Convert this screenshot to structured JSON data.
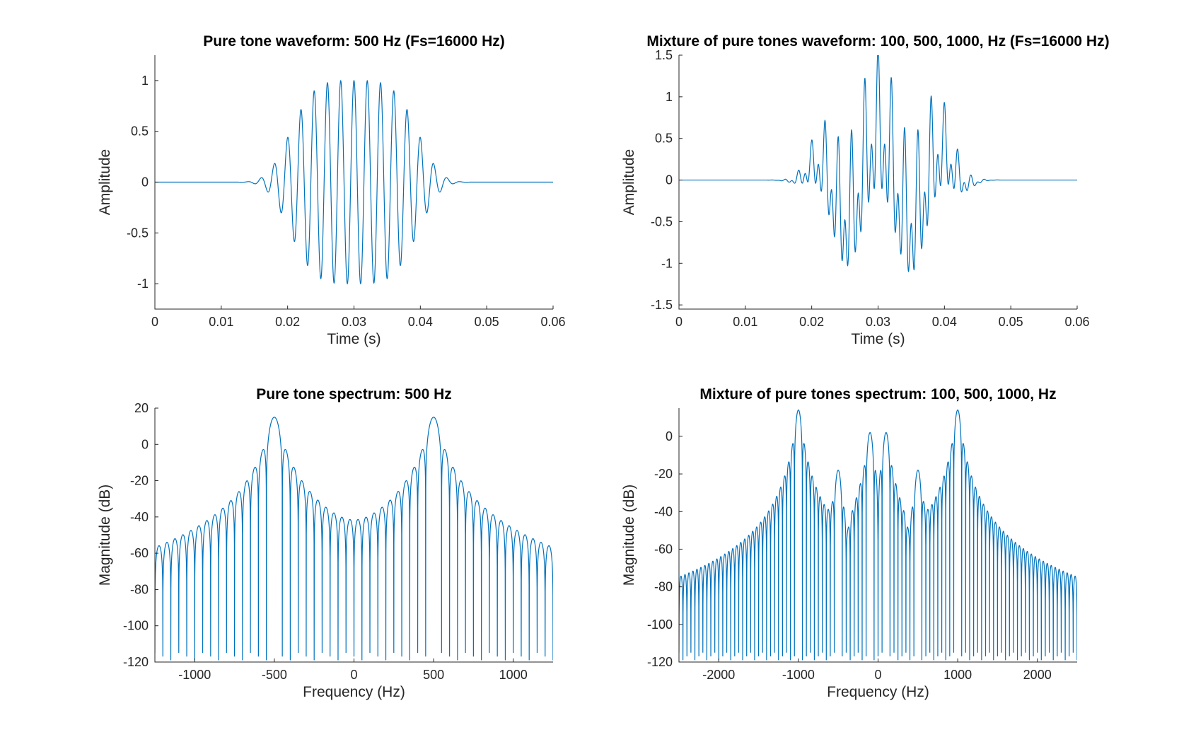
{
  "line_color": "#0072BD",
  "chart_data": [
    {
      "id": "pure_wave",
      "type": "line",
      "title": "Pure tone waveform: 500 Hz (Fs=16000 Hz)",
      "xlabel": "Time (s)",
      "ylabel": "Amplitude",
      "xlim": [
        0,
        0.06
      ],
      "ylim": [
        -1.25,
        1.25
      ],
      "xticks": [
        0,
        0.01,
        0.02,
        0.03,
        0.04,
        0.05,
        0.06
      ],
      "xtick_labels": [
        "0",
        "0.01",
        "0.02",
        "0.03",
        "0.04",
        "0.05",
        "0.06"
      ],
      "yticks": [
        -1,
        -0.5,
        0,
        0.5,
        1
      ],
      "ytick_labels": [
        "-1",
        "-0.5",
        "0",
        "0.5",
        "1"
      ],
      "grid": false,
      "series": [
        {
          "kind": "tone_burst",
          "frequencies_hz": [
            500
          ],
          "envelope_center_s": 0.03,
          "envelope_width_s": 0.0105,
          "envelope_flatness": 4,
          "peak_amplitude": 1.0
        }
      ]
    },
    {
      "id": "mix_wave",
      "type": "line",
      "title": "Mixture of pure tones waveform: 100, 500, 1000,  Hz (Fs=16000 Hz)",
      "xlabel": "Time (s)",
      "ylabel": "Amplitude",
      "xlim": [
        0,
        0.06
      ],
      "ylim": [
        -1.55,
        1.5
      ],
      "xticks": [
        0,
        0.01,
        0.02,
        0.03,
        0.04,
        0.05,
        0.06
      ],
      "xtick_labels": [
        "0",
        "0.01",
        "0.02",
        "0.03",
        "0.04",
        "0.05",
        "0.06"
      ],
      "yticks": [
        -1.5,
        -1,
        -0.5,
        0,
        0.5,
        1,
        1.5
      ],
      "ytick_labels": [
        "-1.5",
        "-1",
        "-0.5",
        "0",
        "0.5",
        "1",
        "1.5"
      ],
      "grid": false,
      "series": [
        {
          "kind": "tone_burst",
          "frequencies_hz": [
            100,
            500,
            1000
          ],
          "envelope_center_s": 0.031,
          "envelope_width_s": 0.0105,
          "envelope_flatness": 4,
          "peak_amplitude": 1.25
        }
      ]
    },
    {
      "id": "pure_spec",
      "type": "line",
      "title": "Pure tone spectrum: 500 Hz",
      "xlabel": "Frequency (Hz)",
      "ylabel": "Magnitude (dB)",
      "xlim": [
        -1250,
        1250
      ],
      "ylim": [
        -120,
        20
      ],
      "xticks": [
        -1000,
        -500,
        0,
        500,
        1000
      ],
      "xtick_labels": [
        "-1000",
        "-500",
        "0",
        "500",
        "1000"
      ],
      "yticks": [
        -120,
        -100,
        -80,
        -60,
        -40,
        -20,
        0,
        20
      ],
      "ytick_labels": [
        "-120",
        "-100",
        "-80",
        "-60",
        "-40",
        "-20",
        "0",
        "20"
      ],
      "grid": false,
      "series": [
        {
          "kind": "spectrum",
          "peaks_hz": [
            -500,
            500
          ],
          "peak_db": 15,
          "sidelobe_spacing_hz": 50,
          "floor_db": -115
        }
      ]
    },
    {
      "id": "mix_spec",
      "type": "line",
      "title": "Mixture of pure tones spectrum: 100, 500, 1000,  Hz",
      "xlabel": "Frequency (Hz)",
      "ylabel": "Magnitude (dB)",
      "xlim": [
        -2500,
        2500
      ],
      "ylim": [
        -120,
        15
      ],
      "xticks": [
        -2000,
        -1000,
        0,
        1000,
        2000
      ],
      "xtick_labels": [
        "-2000",
        "-1000",
        "0",
        "1000",
        "2000"
      ],
      "yticks": [
        -120,
        -100,
        -80,
        -60,
        -40,
        -20,
        0
      ],
      "ytick_labels": [
        "-120",
        "-100",
        "-80",
        "-60",
        "-40",
        "-20",
        "0"
      ],
      "grid": false,
      "series": [
        {
          "kind": "spectrum",
          "peaks_hz": [
            -1000,
            -500,
            -100,
            100,
            500,
            1000
          ],
          "peak_db": [
            14,
            -18,
            2,
            2,
            -18,
            14
          ],
          "sidelobe_spacing_hz": 50,
          "floor_db": -115
        }
      ]
    }
  ]
}
